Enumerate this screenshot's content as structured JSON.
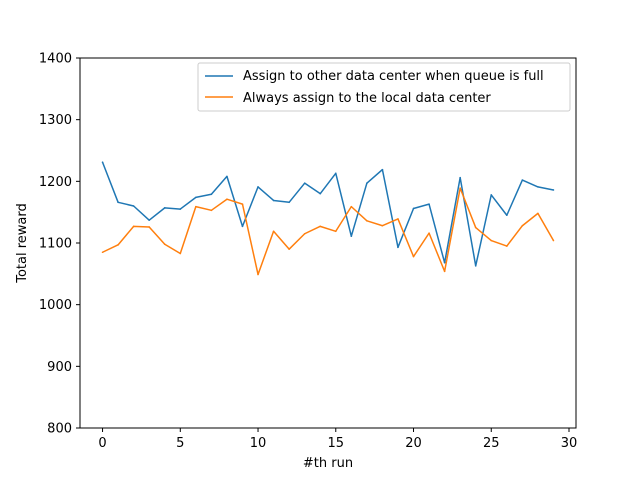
{
  "chart_data": {
    "type": "line",
    "xlabel": "#th run",
    "ylabel": "Total reward",
    "xlim": [
      -1.45,
      30.45
    ],
    "ylim": [
      800,
      1400
    ],
    "xticks": [
      0,
      5,
      10,
      15,
      20,
      25,
      30
    ],
    "yticks": [
      800,
      900,
      1000,
      1100,
      1200,
      1300,
      1400
    ],
    "grid": false,
    "legend_position": "top-right",
    "x": [
      0,
      1,
      2,
      3,
      4,
      5,
      6,
      7,
      8,
      9,
      10,
      11,
      12,
      13,
      14,
      15,
      16,
      17,
      18,
      19,
      20,
      21,
      22,
      23,
      24,
      25,
      26,
      27,
      28,
      29
    ],
    "series": [
      {
        "name": "Assign to other data center when queue is full",
        "color": "#1f77b4",
        "values": [
          1231,
          1166,
          1160,
          1137,
          1157,
          1155,
          1174,
          1179,
          1208,
          1127,
          1191,
          1169,
          1166,
          1197,
          1180,
          1213,
          1111,
          1197,
          1219,
          1093,
          1156,
          1163,
          1068,
          1206,
          1063,
          1178,
          1145,
          1202,
          1191,
          1186
        ]
      },
      {
        "name": "Always assign to the local data center",
        "color": "#ff7f0e",
        "values": [
          1085,
          1097,
          1127,
          1126,
          1098,
          1083,
          1159,
          1153,
          1171,
          1163,
          1049,
          1119,
          1090,
          1115,
          1127,
          1119,
          1159,
          1136,
          1128,
          1139,
          1078,
          1116,
          1054,
          1189,
          1125,
          1104,
          1095,
          1128,
          1148,
          1104
        ]
      }
    ]
  }
}
